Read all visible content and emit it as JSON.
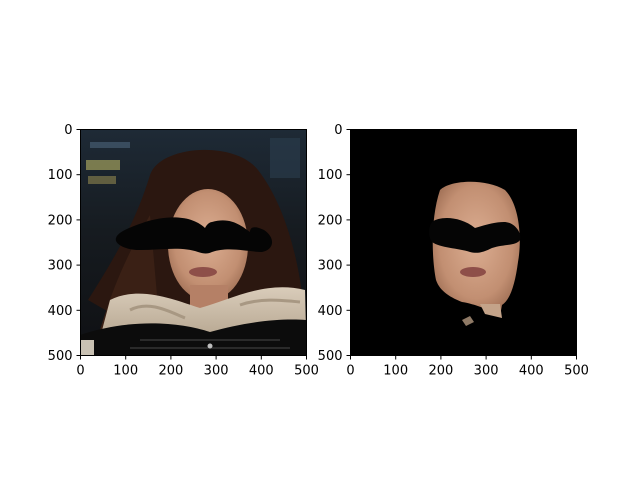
{
  "chart_data": [
    {
      "type": "image",
      "title": "",
      "xlabel": "",
      "ylabel": "",
      "xlim": [
        0,
        500
      ],
      "ylim": [
        500,
        0
      ],
      "x_ticks": [
        "0",
        "100",
        "200",
        "300",
        "400",
        "500"
      ],
      "y_ticks": [
        "0",
        "100",
        "200",
        "300",
        "400",
        "500"
      ],
      "content": "photo of woman with drawn-on black mustache over eyes",
      "colors": {
        "background": "#1b2128",
        "hair": "#2b1710",
        "skin": "#c8987d",
        "fur": "#d2c4b0",
        "jacket": "#0c0c0c",
        "mustache": "#000000"
      }
    },
    {
      "type": "image",
      "title": "",
      "xlabel": "",
      "ylabel": "",
      "xlim": [
        0,
        500
      ],
      "ylim": [
        500,
        0
      ],
      "x_ticks": [
        "0",
        "100",
        "200",
        "300",
        "400",
        "500"
      ],
      "y_ticks": [
        "0",
        "100",
        "200",
        "300",
        "400",
        "500"
      ],
      "content": "face-segmented masked image on black background with drawn-on black mustache",
      "colors": {
        "background": "#000000",
        "skin": "#c8987d",
        "mustache": "#000000"
      }
    }
  ]
}
